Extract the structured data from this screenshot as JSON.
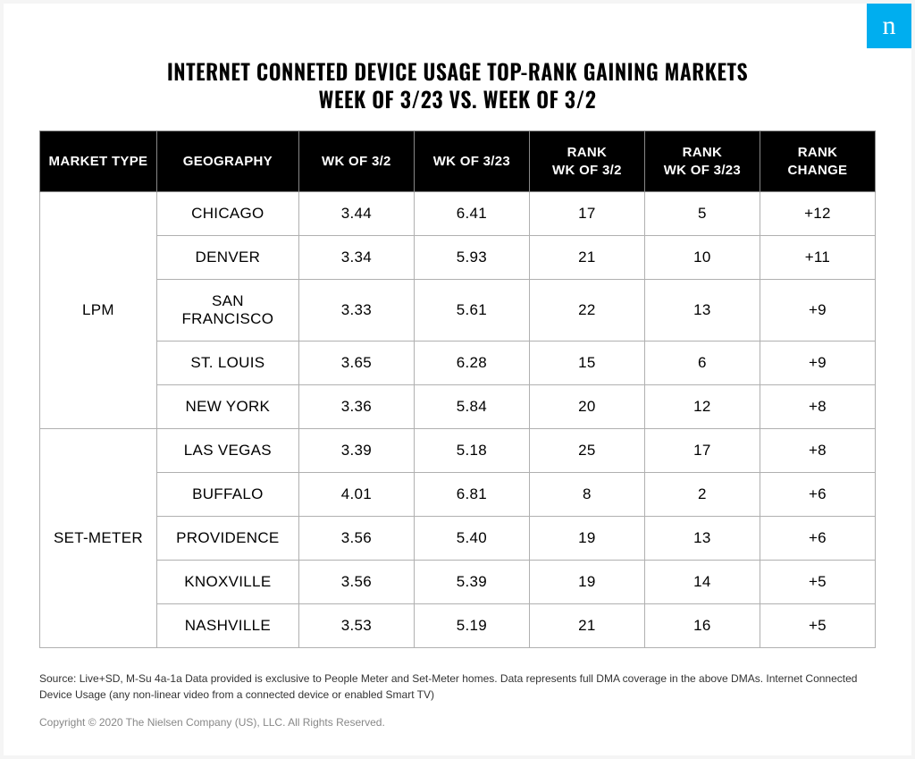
{
  "logo_letter": "n",
  "title_line1": "INTERNET CONNETED DEVICE USAGE TOP-RANK GAINING MARKETS",
  "title_line2": "WEEK OF 3/23 VS. WEEK OF 3/2",
  "columns": [
    "MARKET TYPE",
    "GEOGRAPHY",
    "WK OF 3/2",
    "WK OF 3/23",
    "RANK\nWK OF 3/2",
    "RANK\nWK OF 3/23",
    "RANK CHANGE"
  ],
  "groups": [
    {
      "market_type": "LPM",
      "rows": [
        {
          "geography": "CHICAGO",
          "wk1": "3.44",
          "wk2": "6.41",
          "rank1": "17",
          "rank2": "5",
          "change": "+12"
        },
        {
          "geography": "DENVER",
          "wk1": "3.34",
          "wk2": "5.93",
          "rank1": "21",
          "rank2": "10",
          "change": "+11"
        },
        {
          "geography": "SAN FRANCISCO",
          "wk1": "3.33",
          "wk2": "5.61",
          "rank1": "22",
          "rank2": "13",
          "change": "+9"
        },
        {
          "geography": "ST. LOUIS",
          "wk1": "3.65",
          "wk2": "6.28",
          "rank1": "15",
          "rank2": "6",
          "change": "+9"
        },
        {
          "geography": "NEW YORK",
          "wk1": "3.36",
          "wk2": "5.84",
          "rank1": "20",
          "rank2": "12",
          "change": "+8"
        }
      ]
    },
    {
      "market_type": "SET-METER",
      "rows": [
        {
          "geography": "LAS VEGAS",
          "wk1": "3.39",
          "wk2": "5.18",
          "rank1": "25",
          "rank2": "17",
          "change": "+8"
        },
        {
          "geography": "BUFFALO",
          "wk1": "4.01",
          "wk2": "6.81",
          "rank1": "8",
          "rank2": "2",
          "change": "+6"
        },
        {
          "geography": "PROVIDENCE",
          "wk1": "3.56",
          "wk2": "5.40",
          "rank1": "19",
          "rank2": "13",
          "change": "+6"
        },
        {
          "geography": "KNOXVILLE",
          "wk1": "3.56",
          "wk2": "5.39",
          "rank1": "19",
          "rank2": "14",
          "change": "+5"
        },
        {
          "geography": "NASHVILLE",
          "wk1": "3.53",
          "wk2": "5.19",
          "rank1": "21",
          "rank2": "16",
          "change": "+5"
        }
      ]
    }
  ],
  "source_text": "Source: Live+SD, M-Su 4a-1a Data provided is exclusive to People Meter and Set-Meter homes. Data represents full DMA coverage in the above DMAs. Internet Connected Device Usage (any non-linear video from a connected device or enabled Smart TV)",
  "copyright_text": "Copyright © 2020 The Nielsen Company (US), LLC. All Rights Reserved.",
  "styling": {
    "page_bg": "#f5f5f5",
    "card_bg": "#ffffff",
    "header_bg": "#000000",
    "header_fg": "#ffffff",
    "cell_border": "#b0b0b0",
    "header_border": "#888888",
    "logo_bg": "#00aeef",
    "title_fontsize": 24,
    "header_fontsize": 15,
    "cell_fontsize": 17,
    "source_fontsize": 12,
    "source_color": "#333333",
    "copyright_color": "#888888"
  }
}
